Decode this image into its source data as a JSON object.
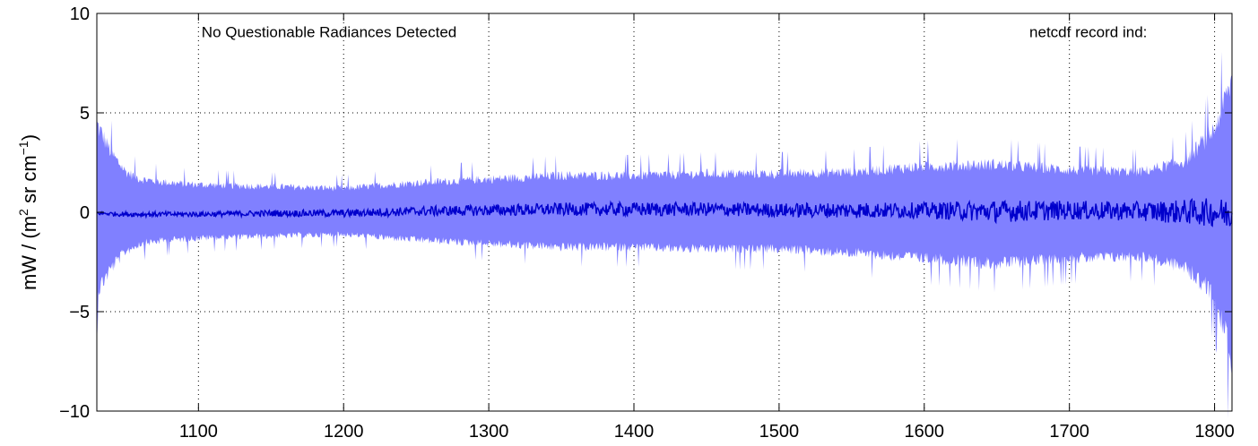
{
  "chart_data": {
    "type": "area",
    "title": "",
    "xlabel": "",
    "ylabel": {
      "base": "mW / (m",
      "sup1": "2",
      "mid": " sr cm",
      "sup2": "−1",
      "end": ")"
    },
    "xlim": [
      1030,
      1812
    ],
    "ylim": [
      -10,
      10
    ],
    "xticks": [
      1100,
      1200,
      1300,
      1400,
      1500,
      1600,
      1700,
      1800
    ],
    "xtick_labels": [
      "1100",
      "1200",
      "1300",
      "1400",
      "1500",
      "1600",
      "1700",
      "1800"
    ],
    "yticks": [
      10,
      5,
      0,
      -5,
      -10
    ],
    "ytick_labels": [
      "10",
      "5",
      "0",
      "−5",
      "−10"
    ],
    "grid": true,
    "grid_style": "dotted",
    "annotations": [
      {
        "text": "No Questionable Radiances Detected",
        "x": 1190,
        "y": 8.8
      },
      {
        "text": "netcdf record ind:",
        "x": 1713,
        "y": 8.8
      }
    ],
    "series": [
      {
        "kind": "band",
        "color": "#8080ff",
        "x": [
          1030,
          1040,
          1050,
          1060,
          1080,
          1100,
          1150,
          1200,
          1250,
          1300,
          1350,
          1400,
          1450,
          1500,
          1550,
          1600,
          1650,
          1700,
          1750,
          1780,
          1800,
          1812
        ],
        "upper": [
          4.8,
          3.2,
          2.2,
          1.8,
          1.6,
          1.5,
          1.4,
          1.3,
          1.6,
          1.8,
          2.0,
          2.0,
          2.1,
          2.1,
          2.2,
          2.5,
          2.6,
          2.3,
          2.2,
          2.8,
          4.5,
          7.2
        ],
        "lower": [
          -4.3,
          -3.0,
          -2.1,
          -1.7,
          -1.5,
          -1.4,
          -1.3,
          -1.2,
          -1.5,
          -1.7,
          -1.9,
          -1.9,
          -2.0,
          -2.0,
          -2.2,
          -2.5,
          -2.8,
          -2.5,
          -2.4,
          -3.0,
          -4.5,
          -8.0
        ]
      },
      {
        "kind": "line",
        "color": "#0000cc",
        "x": [
          1030,
          1050,
          1100,
          1150,
          1200,
          1250,
          1300,
          1350,
          1400,
          1450,
          1500,
          1550,
          1600,
          1650,
          1700,
          1750,
          1800,
          1812
        ],
        "y": [
          -0.05,
          -0.1,
          -0.1,
          -0.05,
          -0.05,
          0.05,
          0.1,
          0.15,
          0.15,
          0.15,
          0.1,
          0.1,
          0.1,
          0.05,
          0.1,
          0.05,
          0.0,
          -0.1
        ],
        "noise": [
          0.05,
          0.08,
          0.08,
          0.1,
          0.12,
          0.15,
          0.18,
          0.2,
          0.22,
          0.22,
          0.22,
          0.25,
          0.25,
          0.35,
          0.3,
          0.3,
          0.45,
          0.5
        ]
      }
    ]
  }
}
